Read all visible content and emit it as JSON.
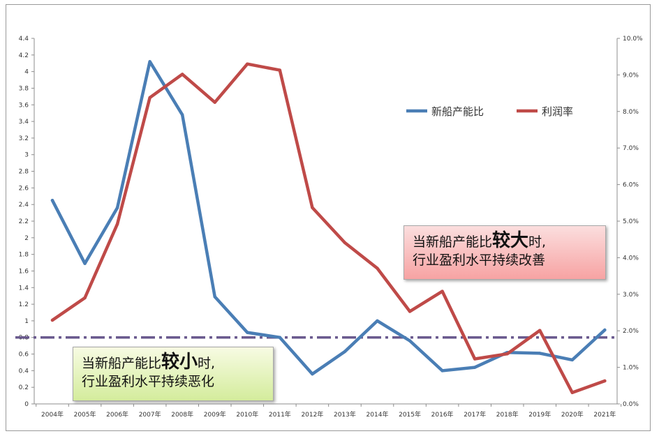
{
  "chart_data": {
    "type": "line",
    "categories": [
      "2004年",
      "2005年",
      "2006年",
      "2007年",
      "2008年",
      "2009年",
      "2010年",
      "2011年",
      "2012年",
      "2013年",
      "2014年",
      "2015年",
      "2016年",
      "2017年",
      "2018年",
      "2019年",
      "2020年",
      "2021年"
    ],
    "series": [
      {
        "name": "新船产能比",
        "axis": "left",
        "color": "#4a7eb5",
        "values": [
          2.45,
          1.69,
          2.36,
          4.12,
          3.48,
          1.29,
          0.86,
          0.8,
          0.36,
          0.63,
          1.0,
          0.76,
          0.4,
          0.44,
          0.62,
          0.61,
          0.53,
          0.89
        ]
      },
      {
        "name": "利润率",
        "axis": "right",
        "color": "#bf4a48",
        "values": [
          0.0229,
          0.029,
          0.0492,
          0.0838,
          0.0902,
          0.0825,
          0.093,
          0.0913,
          0.0537,
          0.0441,
          0.0371,
          0.0253,
          0.0308,
          0.0123,
          0.0137,
          0.0201,
          0.0031,
          0.0063
        ]
      }
    ],
    "y_left": {
      "ylim": [
        0,
        4.4
      ],
      "ticks": [
        "0",
        "0.2",
        "0.4",
        "0.6",
        "0.8",
        "1",
        "1.2",
        "1.4",
        "1.6",
        "1.8",
        "2",
        "2.2",
        "2.4",
        "2.6",
        "2.8",
        "3",
        "3.2",
        "3.4",
        "3.6",
        "3.8",
        "4",
        "4.2",
        "4.4"
      ]
    },
    "y_right": {
      "ylim": [
        0,
        0.1
      ],
      "ticks": [
        "0.0%",
        "1.0%",
        "2.0%",
        "3.0%",
        "4.0%",
        "5.0%",
        "6.0%",
        "7.0%",
        "8.0%",
        "9.0%",
        "10.0%"
      ]
    },
    "reference_line": {
      "value": 0.8,
      "axis": "left",
      "style": "dash-dot",
      "color": "#6a5a8e"
    },
    "legend": {
      "position": "top-right"
    },
    "grid": false
  },
  "callouts": {
    "high": {
      "prefix": "当新船产能比",
      "emphasis": "较大",
      "suffix": "时,",
      "line2": "行业盈利水平持续改善"
    },
    "low": {
      "prefix": "当新船产能比",
      "emphasis": "较小",
      "suffix": "时,",
      "line2": "行业盈利水平持续恶化"
    }
  }
}
